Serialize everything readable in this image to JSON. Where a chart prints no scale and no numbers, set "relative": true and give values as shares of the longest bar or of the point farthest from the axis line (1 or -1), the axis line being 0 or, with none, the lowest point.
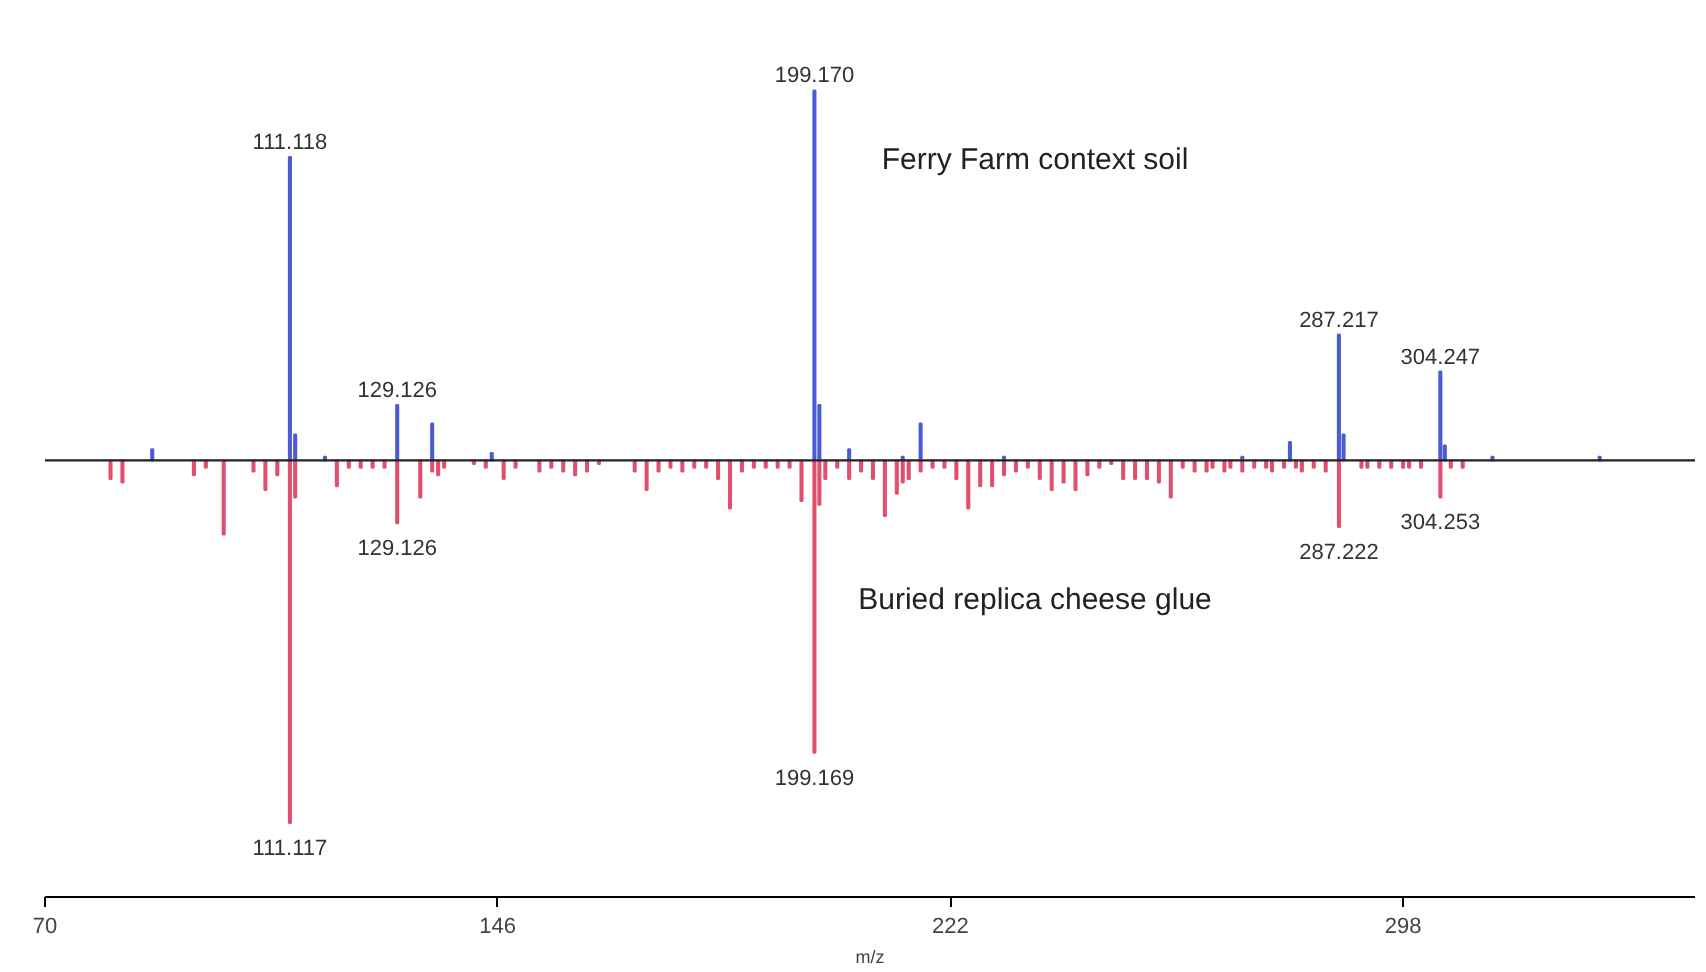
{
  "chart_data": {
    "type": "bar",
    "relative": true,
    "xlabel": "m/z",
    "xlim": [
      70,
      347
    ],
    "xticks": [
      70,
      146,
      222,
      298
    ],
    "series": [
      {
        "name": "Ferry Farm context soil",
        "color": "#4b5bd6",
        "x": [
          88,
          111.118,
          112,
          117,
          129.126,
          135,
          145,
          199.17,
          200,
          205,
          214,
          217,
          231,
          271,
          279,
          287.217,
          288,
          304.247,
          305,
          313,
          331
        ],
        "values": [
          0.03,
          0.82,
          0.07,
          0.01,
          0.15,
          0.1,
          0.02,
          1,
          0.15,
          0.03,
          0.01,
          0.1,
          0.01,
          0.01,
          0.05,
          0.34,
          0.07,
          0.24,
          0.04,
          0.01,
          0.01
        ]
      },
      {
        "name": "Buried replica cheese glue",
        "color": "#e0506e",
        "x": [
          81,
          83,
          95,
          97,
          100,
          105,
          107,
          109,
          111.117,
          112,
          119,
          121,
          123,
          125,
          127,
          129.126,
          133,
          135,
          136,
          137,
          142,
          144,
          147,
          149,
          153,
          155,
          157,
          159,
          161,
          163,
          169,
          171,
          173,
          175,
          177,
          179,
          181,
          183,
          185,
          187,
          189,
          191,
          193,
          195,
          197,
          199.169,
          200,
          201,
          203,
          205,
          207,
          209,
          211,
          213,
          214,
          215,
          217,
          219,
          221,
          223,
          225,
          227,
          229,
          231,
          233,
          235,
          237,
          239,
          241,
          243,
          245,
          247,
          249,
          251,
          253,
          255,
          257,
          259,
          261,
          263,
          265,
          266,
          268,
          269,
          271,
          273,
          275,
          276,
          278,
          280,
          281,
          283,
          285,
          287.222,
          291,
          292,
          294,
          296,
          298,
          299,
          301,
          304.253,
          306,
          308
        ],
        "values": [
          -0.05,
          -0.06,
          -0.04,
          -0.02,
          -0.2,
          -0.03,
          -0.08,
          -0.04,
          -0.98,
          -0.1,
          -0.07,
          -0.02,
          -0.02,
          -0.02,
          -0.02,
          -0.17,
          -0.1,
          -0.03,
          -0.04,
          -0.02,
          -0.01,
          -0.02,
          -0.05,
          -0.02,
          -0.03,
          -0.02,
          -0.03,
          -0.04,
          -0.03,
          -0.01,
          -0.03,
          -0.08,
          -0.03,
          -0.02,
          -0.03,
          -0.02,
          -0.02,
          -0.05,
          -0.13,
          -0.03,
          -0.02,
          -0.02,
          -0.02,
          -0.02,
          -0.11,
          -0.79,
          -0.12,
          -0.05,
          -0.02,
          -0.05,
          -0.03,
          -0.05,
          -0.15,
          -0.09,
          -0.06,
          -0.05,
          -0.03,
          -0.02,
          -0.02,
          -0.05,
          -0.13,
          -0.07,
          -0.07,
          -0.04,
          -0.03,
          -0.02,
          -0.05,
          -0.08,
          -0.06,
          -0.08,
          -0.04,
          -0.02,
          -0.01,
          -0.05,
          -0.05,
          -0.05,
          -0.06,
          -0.1,
          -0.02,
          -0.03,
          -0.03,
          -0.02,
          -0.03,
          -0.02,
          -0.03,
          -0.02,
          -0.02,
          -0.03,
          -0.02,
          -0.02,
          -0.03,
          -0.02,
          -0.03,
          -0.18,
          -0.02,
          -0.02,
          -0.02,
          -0.02,
          -0.02,
          -0.02,
          -0.02,
          -0.1,
          -0.02,
          -0.02
        ]
      }
    ],
    "annotations": [
      {
        "text": "111.118",
        "x": 111.118,
        "y": 0.82
      },
      {
        "text": "129.126",
        "x": 129.126,
        "y": 0.15
      },
      {
        "text": "199.170",
        "x": 199.17,
        "y": 1
      },
      {
        "text": "287.217",
        "x": 287.217,
        "y": 0.34
      },
      {
        "text": "304.247",
        "x": 304.247,
        "y": 0.24
      },
      {
        "text": "129.126",
        "x": 129.126,
        "y": -0.17
      },
      {
        "text": "111.117",
        "x": 111.117,
        "y": -0.98
      },
      {
        "text": "199.169",
        "x": 199.169,
        "y": -0.79
      },
      {
        "text": "287.222",
        "x": 287.222,
        "y": -0.18
      },
      {
        "text": "304.253",
        "x": 304.253,
        "y": -0.1
      }
    ]
  }
}
